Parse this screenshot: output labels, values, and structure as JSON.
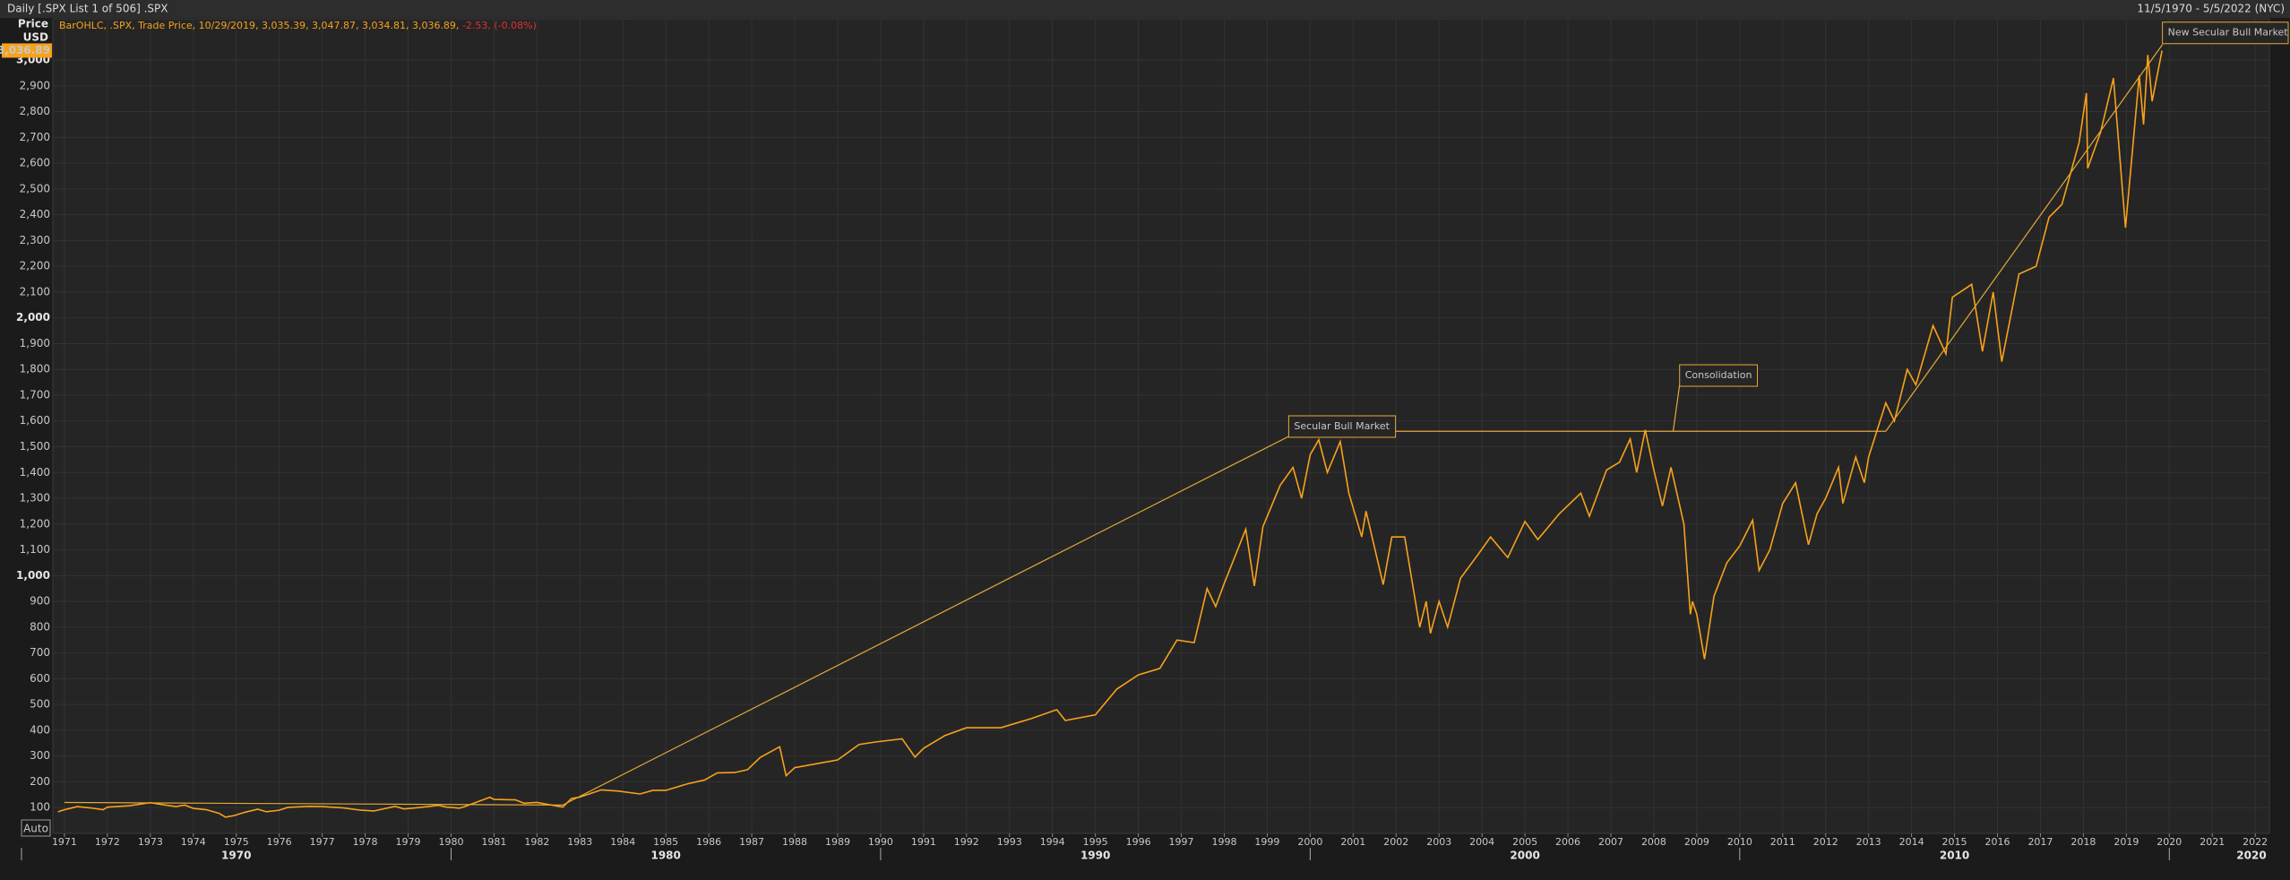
{
  "header": {
    "title": "Daily [.SPX List 1 of 506] .SPX",
    "range": "11/5/1970 - 5/5/2022 (NYC)"
  },
  "chart_data": {
    "type": "line",
    "legend_text": [
      "BarOHLC, .SPX, Trade Price, 10/29/2019, 3,035.39, 3,047.87, 3,034.81, 3,036.89,",
      "-2.53, (-0.08%)"
    ],
    "y_label": "Price",
    "y_unit": "USD",
    "last_price": {
      "value": 3036.89,
      "label": "3,036.89"
    },
    "auto_button": "Auto",
    "color": "#f7a21b",
    "grid": true,
    "xlim": [
      1970.73,
      2022.33
    ],
    "ylim": [
      0,
      3160
    ],
    "xticks": [
      1971,
      1972,
      1973,
      1974,
      1975,
      1976,
      1977,
      1978,
      1979,
      1980,
      1981,
      1982,
      1983,
      1984,
      1985,
      1986,
      1987,
      1988,
      1989,
      1990,
      1991,
      1992,
      1993,
      1994,
      1995,
      1996,
      1997,
      1998,
      1999,
      2000,
      2001,
      2002,
      2003,
      2004,
      2005,
      2006,
      2007,
      2008,
      2009,
      2010,
      2011,
      2012,
      2013,
      2014,
      2015,
      2016,
      2017,
      2018,
      2019,
      2020,
      2021,
      2022
    ],
    "decades": [
      1970,
      1980,
      1990,
      2000,
      2010,
      2020
    ],
    "yticks": [
      100,
      200,
      300,
      400,
      500,
      600,
      700,
      800,
      900,
      {
        "value": 1000,
        "label": "1,000"
      },
      {
        "value": 1100,
        "label": "1,100"
      },
      {
        "value": 1200,
        "label": "1,200"
      },
      {
        "value": 1300,
        "label": "1,300"
      },
      {
        "value": 1400,
        "label": "1,400"
      },
      {
        "value": 1500,
        "label": "1,500"
      },
      {
        "value": 1600,
        "label": "1,600"
      },
      {
        "value": 1700,
        "label": "1,700"
      },
      {
        "value": 1800,
        "label": "1,800"
      },
      {
        "value": 1900,
        "label": "1,900"
      },
      {
        "value": 2000,
        "label": "2,000"
      },
      {
        "value": 2100,
        "label": "2,100"
      },
      {
        "value": 2200,
        "label": "2,200"
      },
      {
        "value": 2300,
        "label": "2,300"
      },
      {
        "value": 2400,
        "label": "2,400"
      },
      {
        "value": 2500,
        "label": "2,500"
      },
      {
        "value": 2600,
        "label": "2,600"
      },
      {
        "value": 2700,
        "label": "2,700"
      },
      {
        "value": 2800,
        "label": "2,800"
      },
      {
        "value": 2900,
        "label": "2,900"
      },
      {
        "value": 3000,
        "label": "3,000"
      }
    ],
    "x": [
      1970.85,
      1971.0,
      1971.3,
      1971.6,
      1971.9,
      1972.0,
      1972.5,
      1973.0,
      1973.3,
      1973.6,
      1973.8,
      1974.0,
      1974.3,
      1974.6,
      1974.75,
      1974.95,
      1975.2,
      1975.5,
      1975.7,
      1976.0,
      1976.2,
      1976.7,
      1977.0,
      1977.5,
      1977.9,
      1978.2,
      1978.7,
      1978.9,
      1979.3,
      1979.7,
      1979.9,
      1980.2,
      1980.3,
      1980.9,
      1981.0,
      1981.5,
      1981.7,
      1982.0,
      1982.6,
      1982.8,
      1983.0,
      1983.5,
      1983.9,
      1984.4,
      1984.7,
      1985.0,
      1985.5,
      1985.9,
      1986.2,
      1986.6,
      1986.9,
      1987.2,
      1987.65,
      1987.8,
      1988.0,
      1988.5,
      1989.0,
      1989.5,
      1989.9,
      1990.5,
      1990.8,
      1991.0,
      1991.5,
      1992.0,
      1992.8,
      1993.5,
      1994.1,
      1994.3,
      1995.0,
      1995.5,
      1996.0,
      1996.5,
      1996.9,
      1997.3,
      1997.6,
      1997.8,
      1998.0,
      1998.5,
      1998.7,
      1998.9,
      1999.3,
      1999.6,
      1999.8,
      2000.0,
      2000.2,
      2000.4,
      2000.7,
      2000.9,
      2001.2,
      2001.3,
      2001.7,
      2001.9,
      2002.2,
      2002.55,
      2002.7,
      2002.8,
      2003.0,
      2003.2,
      2003.5,
      2003.9,
      2004.2,
      2004.6,
      2005.0,
      2005.3,
      2005.8,
      2006.3,
      2006.5,
      2006.9,
      2007.2,
      2007.45,
      2007.6,
      2007.8,
      2008.0,
      2008.2,
      2008.4,
      2008.7,
      2008.85,
      2008.9,
      2009.0,
      2009.18,
      2009.4,
      2009.7,
      2010.0,
      2010.3,
      2010.45,
      2010.7,
      2011.0,
      2011.3,
      2011.6,
      2011.8,
      2012.0,
      2012.3,
      2012.4,
      2012.7,
      2012.9,
      2013.0,
      2013.4,
      2013.6,
      2013.9,
      2014.1,
      2014.5,
      2014.8,
      2014.95,
      2015.4,
      2015.65,
      2015.9,
      2016.1,
      2016.5,
      2016.9,
      2017.2,
      2017.5,
      2017.9,
      2018.07,
      2018.1,
      2018.4,
      2018.7,
      2018.98,
      2019.3,
      2019.4,
      2019.5,
      2019.6,
      2019.83
    ],
    "values": [
      84,
      92,
      104,
      99,
      92,
      102,
      107,
      119,
      111,
      104,
      110,
      97,
      92,
      78,
      63,
      69,
      82,
      94,
      84,
      90,
      101,
      105,
      104,
      99,
      90,
      87,
      105,
      95,
      101,
      109,
      102,
      98,
      103,
      140,
      132,
      130,
      117,
      120,
      102,
      135,
      141,
      169,
      164,
      153,
      167,
      167,
      192,
      207,
      235,
      236,
      247,
      295,
      336,
      224,
      255,
      270,
      285,
      345,
      355,
      367,
      296,
      330,
      380,
      410,
      410,
      445,
      480,
      438,
      460,
      560,
      615,
      640,
      750,
      740,
      950,
      880,
      970,
      1180,
      960,
      1190,
      1350,
      1420,
      1300,
      1469,
      1527,
      1400,
      1520,
      1320,
      1150,
      1250,
      965,
      1150,
      1150,
      800,
      900,
      776,
      900,
      800,
      990,
      1080,
      1150,
      1070,
      1210,
      1140,
      1240,
      1320,
      1230,
      1410,
      1440,
      1530,
      1400,
      1565,
      1410,
      1270,
      1420,
      1200,
      850,
      900,
      850,
      676,
      920,
      1050,
      1115,
      1215,
      1020,
      1100,
      1280,
      1360,
      1120,
      1240,
      1300,
      1420,
      1280,
      1460,
      1360,
      1460,
      1670,
      1600,
      1800,
      1740,
      1970,
      1860,
      2080,
      2130,
      1870,
      2100,
      1830,
      2170,
      2200,
      2390,
      2440,
      2680,
      2872,
      2580,
      2720,
      2930,
      2350,
      2940,
      2750,
      3020,
      2840,
      3036.89
    ],
    "trendlines": [
      {
        "x": [
          1971.0,
          1982.6
        ],
        "y": [
          120,
          110
        ]
      },
      {
        "x": [
          1982.6,
          1999.5
        ],
        "y": [
          110,
          1540
        ]
      },
      {
        "x": [
          2000.2,
          2013.4
        ],
        "y": [
          1560,
          1560
        ]
      },
      {
        "x": [
          2008.6,
          2008.45
        ],
        "y": [
          1740,
          1560
        ]
      },
      {
        "x": [
          2013.4,
          2019.84
        ],
        "y": [
          1560,
          3060
        ]
      }
    ],
    "annotation_color": "#e3a93a",
    "annotations": [
      {
        "text": "Secular Bull Market",
        "x": 1999.5,
        "y": 1620
      },
      {
        "text": "Consolidation",
        "x": 2008.6,
        "y": 1818
      },
      {
        "text": "New Secular Bull Market",
        "x": 2019.84,
        "y": 3147
      }
    ]
  }
}
